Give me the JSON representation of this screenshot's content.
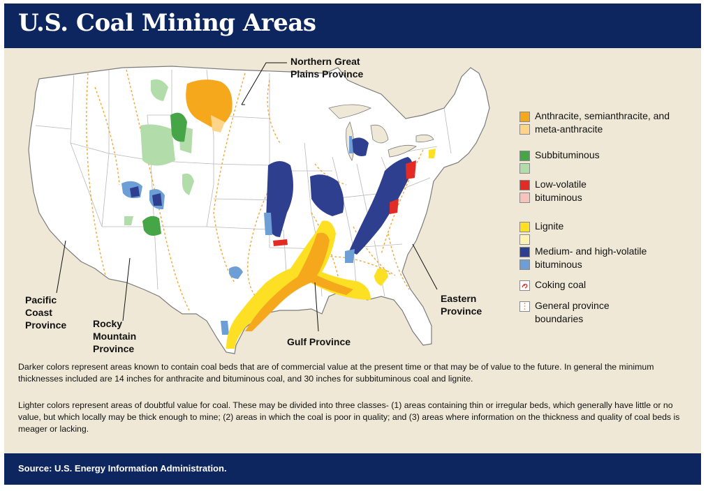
{
  "title": "U.S. Coal Mining Areas",
  "provinces": {
    "northern_great_plains": [
      "Northern Great",
      "Plains Province"
    ],
    "pacific_coast": [
      "Pacific",
      "Coast",
      "Province"
    ],
    "rocky_mountain": [
      "Rocky",
      "Mountain",
      "Province"
    ],
    "gulf": [
      "Gulf Province"
    ],
    "eastern": [
      "Eastern",
      "Province"
    ]
  },
  "legend": [
    {
      "label": "Anthracite, semianthracite, and meta-anthracite",
      "dark": "#f5a81c",
      "light": "#fdd58a"
    },
    {
      "label": "Subbituminous",
      "dark": "#46a546",
      "light": "#b3dcab"
    },
    {
      "label": "Low-volatile bituminous",
      "dark": "#e32b26",
      "light": "#f6c4bb"
    },
    {
      "label": "Lignite",
      "dark": "#fde024",
      "light": "#fff2b5"
    },
    {
      "label": "Medium- and high-volatile bituminous",
      "dark": "#2f3f8f",
      "light": "#6d9fd6"
    },
    {
      "label": "Coking coal",
      "symbol": "coking"
    },
    {
      "label": "General province boundaries",
      "symbol": "boundary"
    }
  ],
  "notes": [
    "Darker colors represent areas known to contain coal beds that are of commercial value at the present time or that may be of value to the future. In general the minimum thicknesses included are 14 inches for anthracite and bituminous coal, and 30 inches for subbituminous coal and lignite.",
    "Lighter colors represent areas of doubtful value for coal. These may be divided into three classes- (1) areas containing thin or irregular beds, which generally have little or no value, but which locally may be thick enough to mine; (2) areas in which the coal is poor in quality; and (3) areas where information on the thickness and quality of coal beds is meager or lacking."
  ],
  "source": "Source: U.S. Energy Information Administration.",
  "colors": {
    "header": "#0e2660",
    "background": "#efe8d6",
    "boundary": "#f2a63a"
  }
}
